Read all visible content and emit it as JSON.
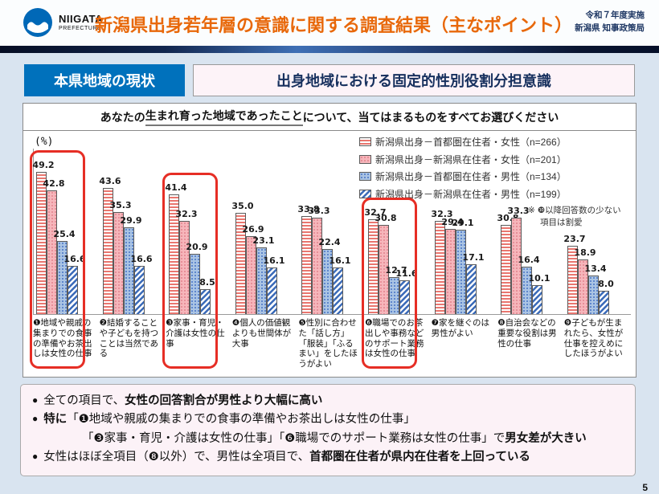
{
  "header": {
    "logo_line1": "NIIGATA",
    "logo_line2": "PREFECTURE",
    "title": "新潟県出身若年層の意識に関する調査結果（主なポイント）",
    "right_line1": "令和７年度実施",
    "right_line2": "新潟県 知事政策局"
  },
  "section": {
    "tag": "本県地域の現状",
    "title": "出身地域における固定的性別役割分担意識"
  },
  "question": {
    "prefix": "あなたの",
    "underlined": "生まれ育った地域であったこと",
    "suffix": "について、当てはまるものをすべてお選びください"
  },
  "chart_data": {
    "type": "bar",
    "unit_label": "(%)",
    "ylim": [
      0,
      55
    ],
    "grid": false,
    "legend_position": "top-right",
    "categories": [
      "❶地域や親戚の集まりでの食事の準備やお茶出しは女性の仕事",
      "❷結婚することや子どもを持つことは当然である",
      "❸家事・育児・介護は女性の仕事",
      "❹個人の価値観よりも世間体が大事",
      "❺性別に合わせた「話し方」「服装」「ふるまい」をしたほうがよい",
      "❻職場でのお茶出しや事務などのサポート業務は女性の仕事",
      "❼家を継ぐのは男性がよい",
      "❽自治会などの重要な役割は男性の仕事",
      "❾子どもが生まれたら、女性が仕事を控えめにしたほうがよい"
    ],
    "series": [
      {
        "name": "新潟県出身－首都圏在住者・女性（n=266）",
        "pattern": "pink-horizontal-stripe",
        "values": [
          49.2,
          43.6,
          41.4,
          35.0,
          33.8,
          32.7,
          32.3,
          30.8,
          23.7
        ]
      },
      {
        "name": "新潟県出身－新潟県在住者・女性（n=201）",
        "pattern": "pink-dot",
        "values": [
          42.8,
          35.3,
          32.3,
          26.9,
          33.3,
          30.8,
          29.4,
          33.3,
          18.9
        ]
      },
      {
        "name": "新潟県出身－首都圏在住者・男性（n=134）",
        "pattern": "blue-dot",
        "values": [
          25.4,
          29.9,
          20.9,
          23.1,
          22.4,
          12.7,
          29.1,
          16.4,
          13.4
        ]
      },
      {
        "name": "新潟県出身－新潟県在住者・男性（n=199）",
        "pattern": "blue-diagonal-stripe",
        "values": [
          16.6,
          16.6,
          8.5,
          16.1,
          16.1,
          11.6,
          17.1,
          10.1,
          8.0
        ]
      }
    ],
    "highlighted_groups": [
      0,
      2,
      5
    ],
    "note_line1": "※ ❿以降回答数の少ない",
    "note_line2": "項目は割愛"
  },
  "findings": {
    "marker": "●",
    "b1_pre": "全ての項目で、",
    "b1_bold": "女性の回答割合が男性より大幅に高い",
    "b2_bold": "特に",
    "b2_text": "「❶地域や親戚の集まりでの食事の準備やお茶出しは女性の仕事」",
    "b2b_text": "「❸家事・育児・介護は女性の仕事」「❻職場でのサポート業務は女性の仕事」で",
    "b2b_bold": "男女差が大きい",
    "b3_pre": "女性はほぼ全項目（❽以外）で、男性は全項目で、",
    "b3_bold": "首都圏在住者が県内在住者を上回っている"
  },
  "page_number": "5",
  "colors": {
    "accent_orange": "#E8680A",
    "tag_blue": "#0071BC",
    "highlight_red": "#E62E25",
    "navy_text": "#1F3864",
    "pink_stripe": "#E9766F",
    "pink_dot_bg": "#F6B6BB",
    "blue_dot": "#4472C4",
    "blue_stripe": "#3A6AB8",
    "slide_bg": "#D9E4F0"
  }
}
